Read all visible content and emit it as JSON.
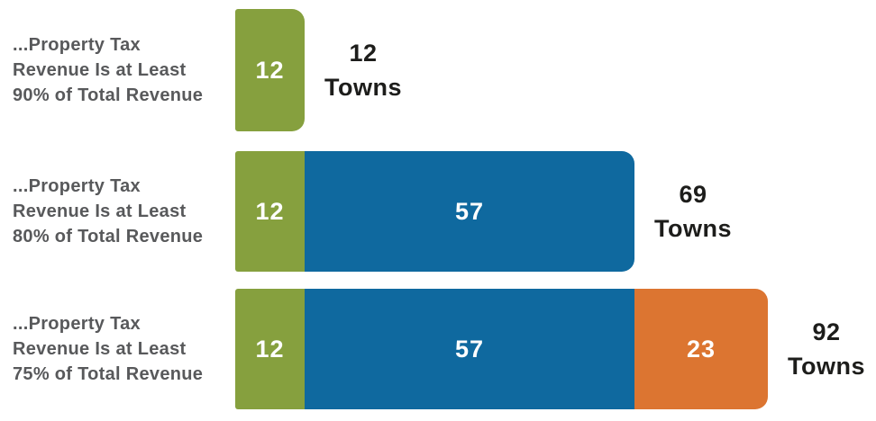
{
  "chart_data": {
    "type": "bar",
    "orientation": "horizontal",
    "stacked": true,
    "title": "",
    "grid": false,
    "legend": false,
    "unit_suffix": "Towns",
    "colors": {
      "segment_green": "#86A03E",
      "segment_blue": "#0F699F",
      "segment_orange": "#DC7531"
    },
    "text_colors": {
      "category_label": "#58595B",
      "total_label": "#1D1D1B",
      "segment_value": "#FFFFFF"
    },
    "rows": [
      {
        "category_label": "...Property Tax\nRevenue Is at Least\n90% of Total Revenue",
        "segments": [
          {
            "value": 12,
            "color_key": "segment_green"
          }
        ],
        "total": 12,
        "total_label": "12\nTowns"
      },
      {
        "category_label": "...Property Tax\nRevenue Is at Least\n80% of Total Revenue",
        "segments": [
          {
            "value": 12,
            "color_key": "segment_green"
          },
          {
            "value": 57,
            "color_key": "segment_blue"
          }
        ],
        "total": 69,
        "total_label": "69\nTowns"
      },
      {
        "category_label": "...Property Tax\nRevenue Is at Least\n75% of Total Revenue",
        "segments": [
          {
            "value": 12,
            "color_key": "segment_green"
          },
          {
            "value": 57,
            "color_key": "segment_blue"
          },
          {
            "value": 23,
            "color_key": "segment_orange"
          }
        ],
        "total": 92,
        "total_label": "92\nTowns"
      }
    ]
  }
}
